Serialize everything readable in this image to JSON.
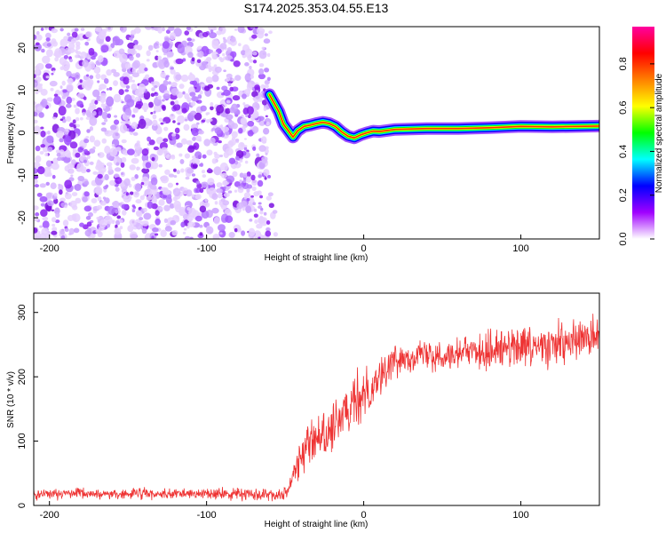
{
  "title": "S174.2025.353.04.55.E13",
  "chart_data": [
    {
      "type": "heatmap",
      "name": "spectrogram",
      "xlabel": "Height of straight line (km)",
      "ylabel": "Frequency (Hz)",
      "xlim": [
        -210,
        150
      ],
      "ylim": [
        -25,
        25
      ],
      "xticks": [
        -200,
        -100,
        0,
        100
      ],
      "xtick_labels": [
        "-200",
        "-100",
        "0",
        "100"
      ],
      "yticks": [
        -20,
        -10,
        0,
        10,
        20
      ],
      "ytick_labels": [
        "-20",
        "-10",
        "0",
        "10",
        "20"
      ],
      "noise_region_x": [
        -210,
        -60
      ],
      "ridge": {
        "x": [
          -60,
          -57,
          -54,
          -51,
          -48,
          -45,
          -42,
          -38,
          -34,
          -30,
          -26,
          -22,
          -18,
          -14,
          -10,
          -6,
          -2,
          2,
          6,
          10,
          20,
          40,
          60,
          80,
          100,
          120,
          150
        ],
        "freq": [
          9,
          7,
          5,
          2,
          0.5,
          -1,
          0.5,
          1.5,
          1.8,
          2.2,
          2.5,
          2.2,
          1.5,
          0.2,
          -0.8,
          -1.2,
          -0.5,
          0,
          0.4,
          0.3,
          0.8,
          1.0,
          1.0,
          1.2,
          1.5,
          1.4,
          1.6
        ]
      },
      "colorbar": {
        "label": "Normalized spectral amplitude",
        "ticks": [
          0.0,
          0.2,
          0.4,
          0.6,
          0.8
        ],
        "tick_labels": [
          "0.0",
          "0.2",
          "0.4",
          "0.6",
          "0.8"
        ],
        "range": [
          0,
          0.97
        ],
        "colors": [
          "#ffffff",
          "#a000ff",
          "#0000ff",
          "#00ffff",
          "#00ff00",
          "#ffff00",
          "#ff8000",
          "#ff0000",
          "#ff00a0"
        ]
      }
    },
    {
      "type": "line",
      "name": "snr",
      "xlabel": "Height of straight line (km)",
      "ylabel": "SNR (10 * v/v)",
      "xlim": [
        -210,
        150
      ],
      "ylim": [
        0,
        330
      ],
      "xticks": [
        -200,
        -100,
        0,
        100
      ],
      "xtick_labels": [
        "-200",
        "-100",
        "0",
        "100"
      ],
      "yticks": [
        0,
        100,
        200,
        300
      ],
      "ytick_labels": [
        "0",
        "100",
        "200",
        "300"
      ],
      "color": "#ee3333",
      "series": [
        {
          "name": "SNR trend",
          "x": [
            -210,
            -150,
            -100,
            -50,
            -46,
            -44,
            -40,
            -35,
            -25,
            -15,
            -5,
            0,
            10,
            20,
            25,
            35,
            50,
            70,
            90,
            110,
            130,
            150
          ],
          "values": [
            18,
            18,
            18,
            18,
            40,
            55,
            80,
            95,
            110,
            130,
            160,
            175,
            200,
            225,
            230,
            235,
            235,
            240,
            245,
            245,
            250,
            265
          ],
          "spread": [
            7,
            7,
            7,
            8,
            15,
            20,
            25,
            30,
            30,
            35,
            35,
            35,
            30,
            20,
            20,
            20,
            20,
            25,
            28,
            28,
            28,
            30
          ]
        }
      ]
    }
  ]
}
